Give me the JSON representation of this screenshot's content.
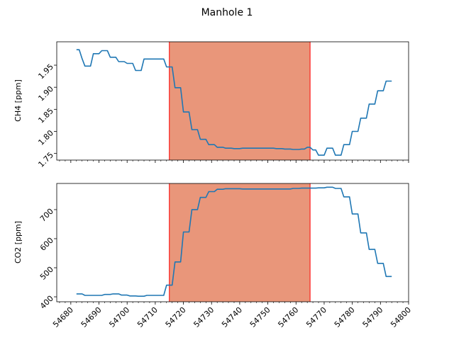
{
  "chart_data": {
    "title": "Manhole 1",
    "x_ticks": [
      54680,
      54690,
      54700,
      54710,
      54720,
      54730,
      54740,
      54750,
      54760,
      54770,
      54780,
      54790,
      54800
    ],
    "xlim": [
      54675,
      54800
    ],
    "span": {
      "x_start": 54715,
      "x_end": 54765,
      "fill_color": "#e9967a",
      "edge_color": "#ff0000"
    },
    "line_color": "#1f77b4",
    "charts": [
      {
        "type": "line",
        "ylabel": "CH4 [ppm]",
        "ylim": [
          1.735,
          2.003
        ],
        "y_ticks": [
          1.75,
          1.8,
          1.85,
          1.9,
          1.95
        ],
        "y_tick_labels": [
          "1.75",
          "1.80",
          "1.85",
          "1.90",
          "1.95"
        ],
        "x": [
          54682,
          54683,
          54684,
          54685,
          54686,
          54687,
          54688,
          54689,
          54690,
          54691,
          54692,
          54693,
          54694,
          54695,
          54696,
          54697,
          54698,
          54699,
          54700,
          54701,
          54702,
          54703,
          54704,
          54705,
          54706,
          54707,
          54708,
          54709,
          54710,
          54711,
          54712,
          54713,
          54714,
          54715,
          54716,
          54717,
          54718,
          54719,
          54720,
          54721,
          54722,
          54723,
          54724,
          54725,
          54726,
          54727,
          54728,
          54729,
          54730,
          54731,
          54732,
          54733,
          54734,
          54735,
          54736,
          54737,
          54738,
          54739,
          54740,
          54741,
          54742,
          54743,
          54744,
          54745,
          54746,
          54747,
          54748,
          54749,
          54750,
          54751,
          54752,
          54753,
          54754,
          54755,
          54756,
          54757,
          54758,
          54759,
          54760,
          54761,
          54762,
          54763,
          54764,
          54765,
          54766,
          54767,
          54768,
          54769,
          54770,
          54771,
          54772,
          54773,
          54774,
          54775,
          54776,
          54777,
          54778,
          54779,
          54780,
          54781,
          54782,
          54783,
          54784,
          54785,
          54786,
          54787,
          54788,
          54789,
          54790,
          54791,
          54792,
          54793,
          54794
        ],
        "values": [
          1.985,
          1.985,
          1.965,
          1.948,
          1.948,
          1.948,
          1.976,
          1.976,
          1.976,
          1.983,
          1.983,
          1.983,
          1.968,
          1.968,
          1.968,
          1.958,
          1.958,
          1.958,
          1.954,
          1.954,
          1.954,
          1.938,
          1.938,
          1.938,
          1.964,
          1.964,
          1.964,
          1.964,
          1.964,
          1.964,
          1.964,
          1.964,
          1.946,
          1.946,
          1.946,
          1.899,
          1.899,
          1.899,
          1.844,
          1.844,
          1.844,
          1.804,
          1.804,
          1.804,
          1.782,
          1.782,
          1.782,
          1.77,
          1.77,
          1.77,
          1.764,
          1.764,
          1.764,
          1.762,
          1.762,
          1.762,
          1.761,
          1.761,
          1.761,
          1.762,
          1.762,
          1.762,
          1.762,
          1.762,
          1.762,
          1.762,
          1.762,
          1.762,
          1.762,
          1.762,
          1.762,
          1.761,
          1.761,
          1.761,
          1.76,
          1.76,
          1.76,
          1.759,
          1.759,
          1.759,
          1.76,
          1.76,
          1.764,
          1.764,
          1.758,
          1.758,
          1.746,
          1.746,
          1.746,
          1.762,
          1.762,
          1.762,
          1.746,
          1.746,
          1.746,
          1.77,
          1.77,
          1.77,
          1.8,
          1.8,
          1.8,
          1.83,
          1.83,
          1.83,
          1.862,
          1.862,
          1.862,
          1.892,
          1.892,
          1.892,
          1.914,
          1.914,
          1.914
        ]
      },
      {
        "type": "line",
        "ylabel": "CO2 [ppm]",
        "ylim": [
          383,
          790
        ],
        "y_ticks": [
          400,
          500,
          600,
          700
        ],
        "y_tick_labels": [
          "400",
          "500",
          "600",
          "700"
        ],
        "x": [
          54682,
          54683,
          54684,
          54685,
          54686,
          54687,
          54688,
          54689,
          54690,
          54691,
          54692,
          54693,
          54694,
          54695,
          54696,
          54697,
          54698,
          54699,
          54700,
          54701,
          54702,
          54703,
          54704,
          54705,
          54706,
          54707,
          54708,
          54709,
          54710,
          54711,
          54712,
          54713,
          54714,
          54715,
          54716,
          54717,
          54718,
          54719,
          54720,
          54721,
          54722,
          54723,
          54724,
          54725,
          54726,
          54727,
          54728,
          54729,
          54730,
          54731,
          54732,
          54733,
          54734,
          54735,
          54736,
          54737,
          54738,
          54739,
          54740,
          54741,
          54742,
          54743,
          54744,
          54745,
          54746,
          54747,
          54748,
          54749,
          54750,
          54751,
          54752,
          54753,
          54754,
          54755,
          54756,
          54757,
          54758,
          54759,
          54760,
          54761,
          54762,
          54763,
          54764,
          54765,
          54766,
          54767,
          54768,
          54769,
          54770,
          54771,
          54772,
          54773,
          54774,
          54775,
          54776,
          54777,
          54778,
          54779,
          54780,
          54781,
          54782,
          54783,
          54784,
          54785,
          54786,
          54787,
          54788,
          54789,
          54790,
          54791,
          54792,
          54793,
          54794
        ],
        "values": [
          410,
          410,
          410,
          405,
          405,
          405,
          405,
          405,
          405,
          405,
          408,
          408,
          408,
          410,
          410,
          410,
          406,
          406,
          406,
          403,
          403,
          403,
          402,
          402,
          402,
          405,
          405,
          405,
          405,
          405,
          405,
          405,
          440,
          440,
          440,
          520,
          520,
          520,
          623,
          623,
          623,
          700,
          700,
          700,
          742,
          742,
          742,
          762,
          762,
          762,
          770,
          770,
          770,
          772,
          772,
          772,
          772,
          772,
          772,
          771,
          771,
          771,
          771,
          771,
          771,
          771,
          771,
          771,
          771,
          771,
          771,
          771,
          771,
          771,
          771,
          771,
          771,
          773,
          773,
          773,
          774,
          774,
          774,
          774,
          774,
          774,
          775,
          775,
          775,
          777,
          777,
          777,
          773,
          773,
          773,
          744,
          744,
          744,
          685,
          685,
          685,
          620,
          620,
          620,
          563,
          563,
          563,
          515,
          515,
          515,
          470,
          470,
          470
        ]
      }
    ]
  }
}
